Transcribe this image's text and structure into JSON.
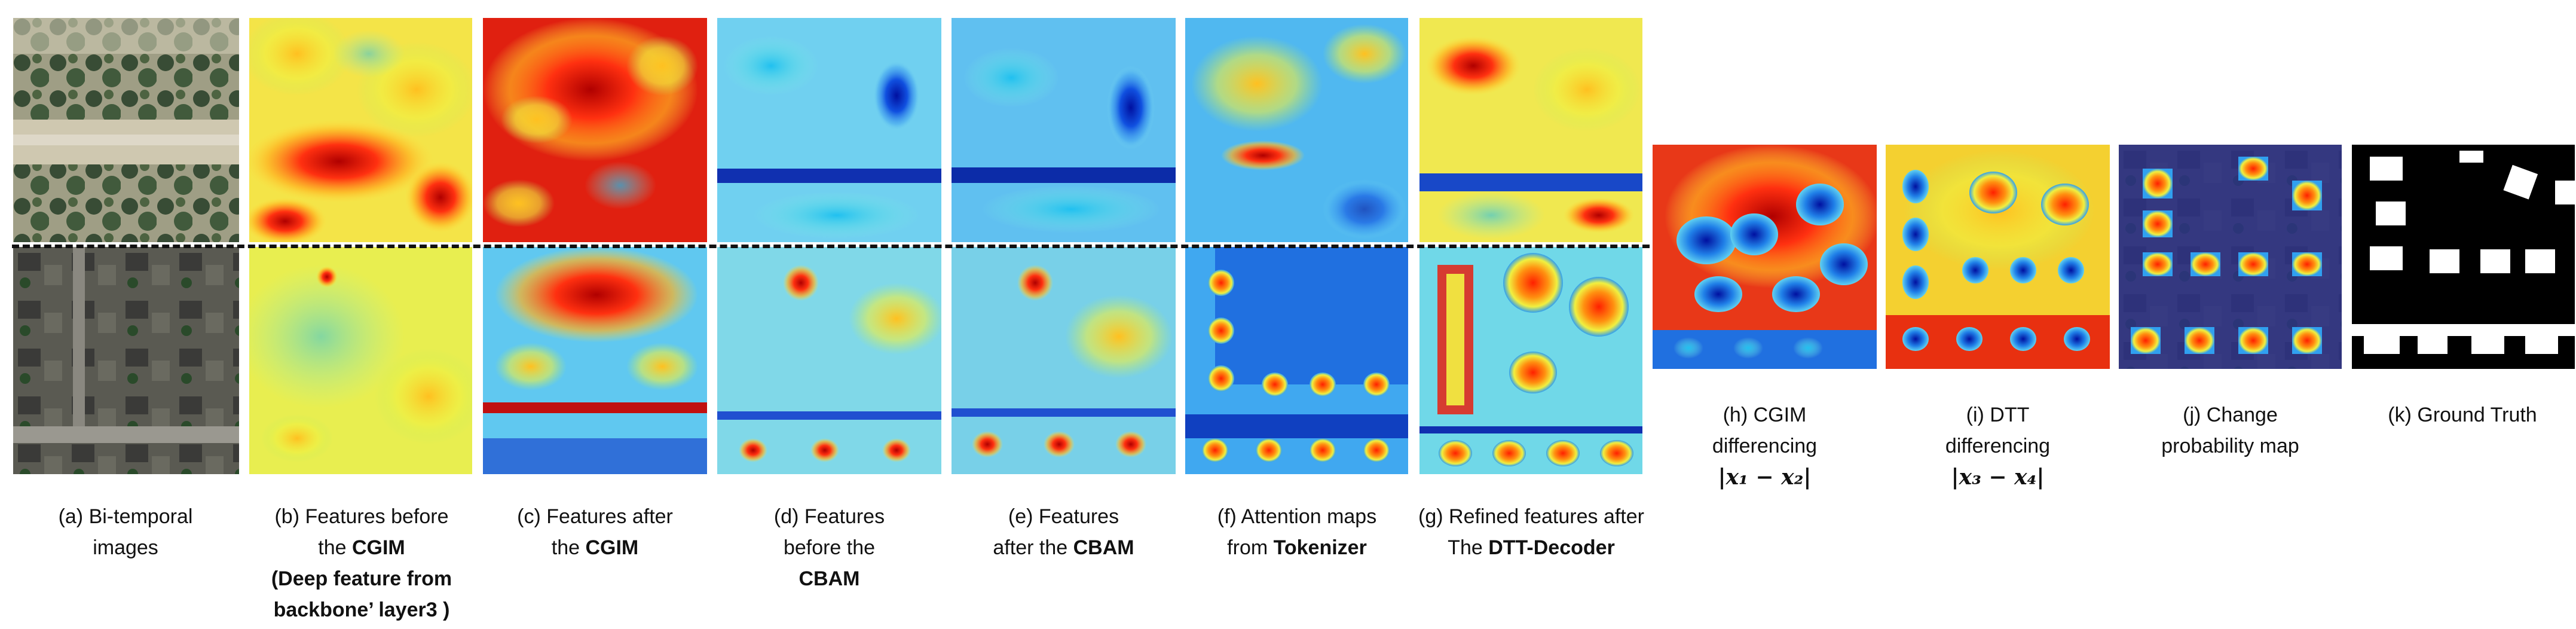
{
  "figure": {
    "captions": {
      "a": {
        "line1": "(a) Bi-temporal",
        "line2": "images"
      },
      "b": {
        "line1": "(b) Features before",
        "line2_pre": "the ",
        "line2_bold": "CGIM",
        "line3": "(Deep feature from",
        "line4": "backbone’ layer3 )"
      },
      "c": {
        "line1": "(c) Features after",
        "line2_pre": "the ",
        "line2_bold": "CGIM"
      },
      "d": {
        "line1": "(d) Features",
        "line2": "before the",
        "line3_bold": "CBAM"
      },
      "e": {
        "line1": "(e) Features",
        "line2_pre": "after the ",
        "line2_bold": "CBAM"
      },
      "f": {
        "line1": "(f) Attention maps",
        "line2_pre": "from ",
        "line2_bold": "Tokenizer"
      },
      "g": {
        "line1": "(g) Refined features after",
        "line2_pre": "The ",
        "line2_bold": "DTT-Decoder"
      },
      "h": {
        "line1": "(h) CGIM",
        "line2": "differencing",
        "math": "|x₁ − x₂|"
      },
      "i": {
        "line1": "(i) DTT",
        "line2": "differencing",
        "math": "|x₃ − x₄|"
      },
      "j": {
        "line1": "(j) Change",
        "line2": "probability map"
      },
      "k": {
        "line1": "(k) Ground Truth"
      }
    },
    "colors": {
      "jet_low": "#1030c8",
      "jet_mid": "#40c0f0",
      "jet_high": "#d01010",
      "background": "#ffffff"
    }
  }
}
